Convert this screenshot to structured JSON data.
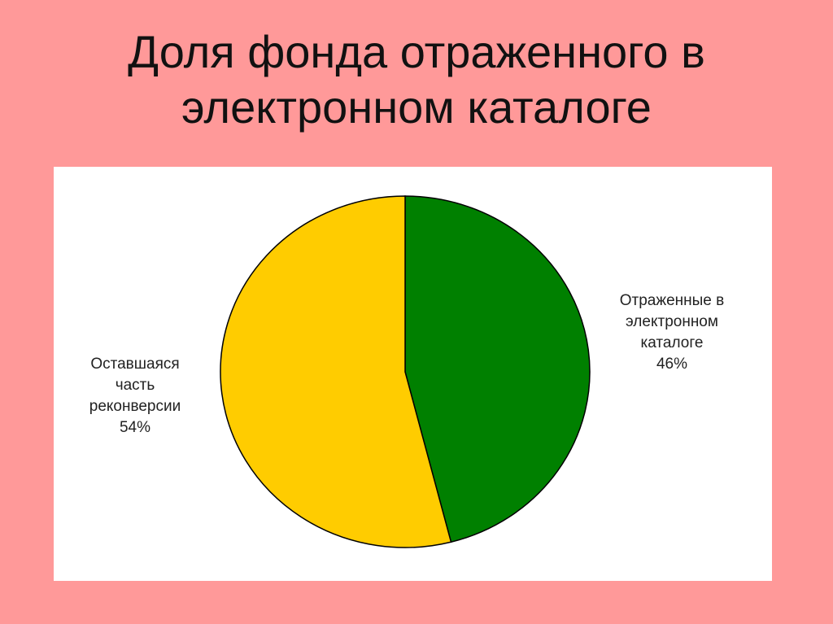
{
  "title_line1": "Доля фонда отраженного в",
  "title_line2": "электронном каталоге",
  "chart_data": {
    "type": "pie",
    "title": "Доля фонда отраженного в электронном каталоге",
    "start": "top-clockwise",
    "slices": [
      {
        "label_lines": [
          "Отраженные в",
          "электронном",
          "каталоге",
          "46%"
        ],
        "name": "Отраженные в электронном каталоге",
        "value": 46,
        "color": "#008000"
      },
      {
        "label_lines": [
          "Оставшаяся",
          "часть",
          "реконверсии",
          "54%"
        ],
        "name": "Оставшаяся часть реконверсии",
        "value": 54,
        "color": "#FFCC00"
      }
    ]
  }
}
